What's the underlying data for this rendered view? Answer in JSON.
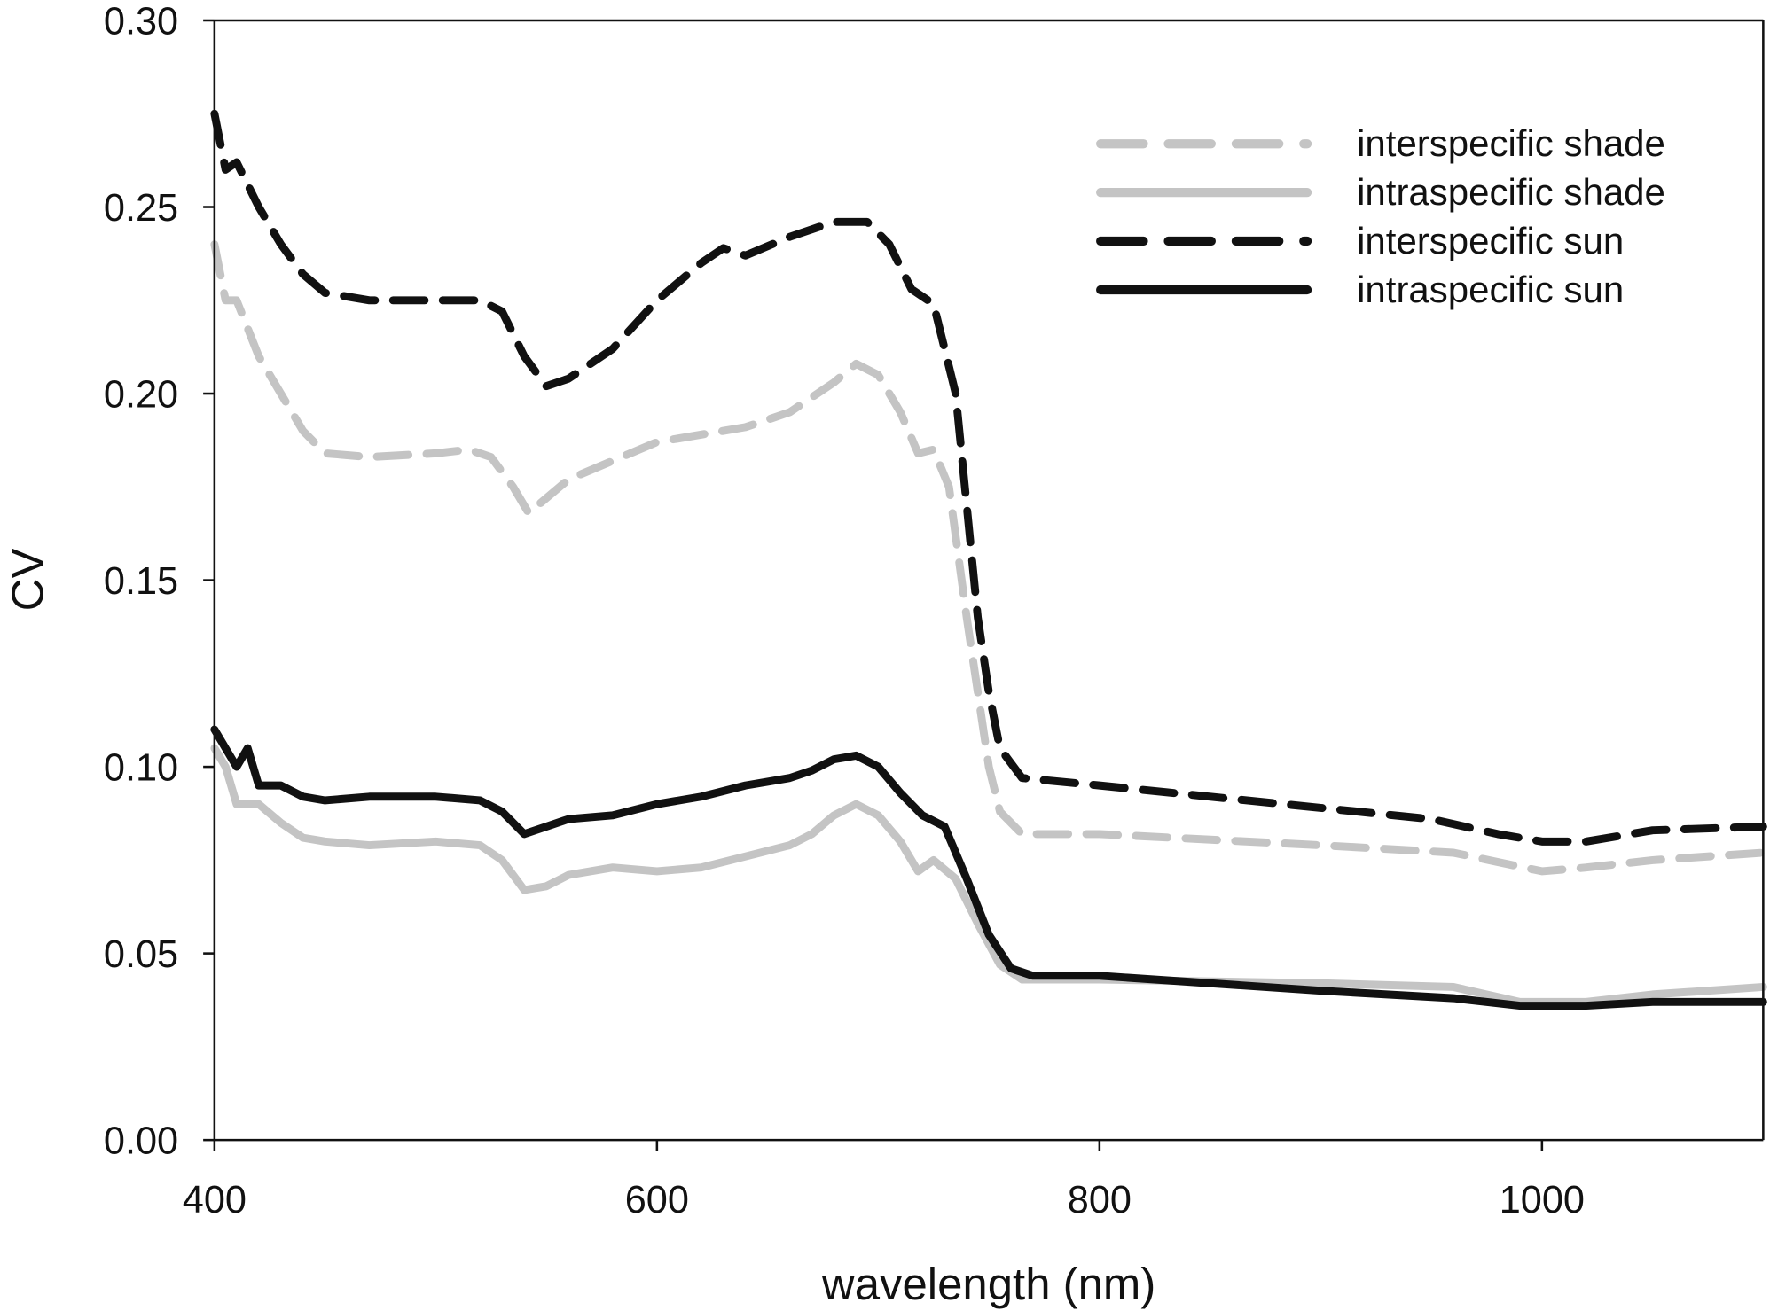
{
  "chart_data": {
    "type": "line",
    "title": "",
    "xlabel": "wavelength (nm)",
    "ylabel": "CV",
    "xlim": [
      400,
      1100
    ],
    "ylim": [
      0,
      0.3
    ],
    "xticks": [
      "400",
      "600",
      "800",
      "1000"
    ],
    "xtick_values": [
      400,
      600,
      800,
      1000
    ],
    "yticks": [
      "0.00",
      "0.05",
      "0.10",
      "0.15",
      "0.20",
      "0.25",
      "0.30"
    ],
    "ytick_values": [
      0,
      0.05,
      0.1,
      0.15,
      0.2,
      0.25,
      0.3
    ],
    "grid": false,
    "legend_position": "top-right",
    "series": [
      {
        "name": "interspecific shade",
        "color": "#c4c4c4",
        "dash": true,
        "x": [
          400,
          405,
          410,
          420,
          430,
          440,
          450,
          470,
          500,
          515,
          525,
          535,
          542,
          550,
          560,
          580,
          600,
          620,
          640,
          660,
          680,
          690,
          700,
          710,
          718,
          725,
          732,
          740,
          745,
          750,
          755,
          765,
          800,
          900,
          960,
          1000,
          1020,
          1050,
          1100
        ],
        "y": [
          0.24,
          0.225,
          0.225,
          0.21,
          0.2,
          0.19,
          0.184,
          0.183,
          0.184,
          0.185,
          0.183,
          0.175,
          0.168,
          0.172,
          0.177,
          0.182,
          0.187,
          0.189,
          0.191,
          0.195,
          0.203,
          0.208,
          0.205,
          0.195,
          0.184,
          0.185,
          0.175,
          0.14,
          0.12,
          0.1,
          0.088,
          0.082,
          0.082,
          0.079,
          0.077,
          0.072,
          0.073,
          0.075,
          0.077
        ]
      },
      {
        "name": "intraspecific shade",
        "color": "#c4c4c4",
        "dash": false,
        "x": [
          400,
          405,
          410,
          420,
          430,
          440,
          450,
          470,
          500,
          520,
          530,
          540,
          550,
          560,
          580,
          600,
          620,
          640,
          660,
          670,
          680,
          690,
          700,
          710,
          718,
          725,
          735,
          745,
          755,
          765,
          800,
          900,
          960,
          990,
          1020,
          1050,
          1100
        ],
        "y": [
          0.105,
          0.1,
          0.09,
          0.09,
          0.085,
          0.081,
          0.08,
          0.079,
          0.08,
          0.079,
          0.075,
          0.067,
          0.068,
          0.071,
          0.073,
          0.072,
          0.073,
          0.076,
          0.079,
          0.082,
          0.087,
          0.09,
          0.087,
          0.08,
          0.072,
          0.075,
          0.07,
          0.058,
          0.047,
          0.043,
          0.043,
          0.042,
          0.041,
          0.037,
          0.037,
          0.039,
          0.041
        ]
      },
      {
        "name": "interspecific sun",
        "color": "#111111",
        "dash": true,
        "x": [
          400,
          405,
          410,
          420,
          430,
          440,
          450,
          470,
          500,
          520,
          530,
          540,
          550,
          560,
          580,
          600,
          620,
          630,
          640,
          660,
          680,
          695,
          705,
          715,
          725,
          735,
          740,
          745,
          750,
          755,
          765,
          800,
          900,
          950,
          980,
          1000,
          1020,
          1050,
          1100
        ],
        "y": [
          0.275,
          0.26,
          0.262,
          0.25,
          0.24,
          0.232,
          0.227,
          0.225,
          0.225,
          0.225,
          0.222,
          0.21,
          0.202,
          0.204,
          0.212,
          0.225,
          0.235,
          0.239,
          0.237,
          0.242,
          0.246,
          0.246,
          0.24,
          0.228,
          0.224,
          0.2,
          0.17,
          0.14,
          0.12,
          0.105,
          0.097,
          0.095,
          0.089,
          0.086,
          0.082,
          0.08,
          0.08,
          0.083,
          0.084
        ]
      },
      {
        "name": "intraspecific sun",
        "color": "#111111",
        "dash": false,
        "x": [
          400,
          405,
          410,
          415,
          420,
          430,
          440,
          450,
          470,
          500,
          520,
          530,
          540,
          550,
          560,
          580,
          600,
          620,
          640,
          660,
          670,
          680,
          690,
          700,
          710,
          720,
          730,
          740,
          750,
          760,
          770,
          800,
          900,
          960,
          990,
          1020,
          1050,
          1100
        ],
        "y": [
          0.11,
          0.105,
          0.1,
          0.105,
          0.095,
          0.095,
          0.092,
          0.091,
          0.092,
          0.092,
          0.091,
          0.088,
          0.082,
          0.084,
          0.086,
          0.087,
          0.09,
          0.092,
          0.095,
          0.097,
          0.099,
          0.102,
          0.103,
          0.1,
          0.093,
          0.087,
          0.084,
          0.07,
          0.055,
          0.046,
          0.044,
          0.044,
          0.04,
          0.038,
          0.036,
          0.036,
          0.037,
          0.037
        ]
      }
    ]
  }
}
